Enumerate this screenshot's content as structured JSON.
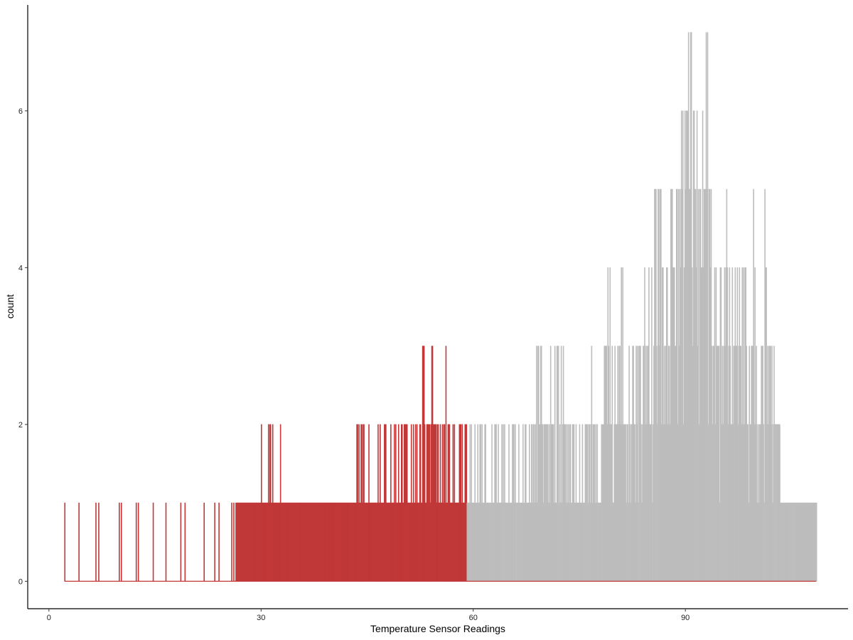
{
  "chart_data": {
    "type": "histogram",
    "title": "",
    "xlabel": "Temperature Sensor Readings",
    "ylabel": "count",
    "xlim": [
      -3,
      113
    ],
    "ylim": [
      -0.35,
      7.35
    ],
    "x_ticks": [
      0,
      30,
      60,
      90
    ],
    "y_ticks": [
      0,
      2,
      4,
      6
    ],
    "x_tick_labels": [
      "0",
      "30",
      "60",
      "90"
    ],
    "y_tick_labels": [
      "0",
      "2",
      "4",
      "6"
    ],
    "bin_width": 0.1,
    "data_range": [
      2.2,
      108.5
    ],
    "threshold": 59.1,
    "grid": false,
    "legend": "none",
    "series": [
      {
        "color": "#c13838",
        "x_range": [
          2.2,
          59.1
        ],
        "sampled_counts": [
          [
            2.2,
            1
          ],
          [
            4.2,
            1
          ],
          [
            6.6,
            1
          ],
          [
            7.0,
            1
          ],
          [
            9.9,
            1
          ],
          [
            10.2,
            1
          ],
          [
            12.3,
            1
          ],
          [
            12.6,
            1
          ],
          [
            14.7,
            1
          ],
          [
            16.5,
            1
          ],
          [
            18.6,
            1
          ],
          [
            19.2,
            1
          ],
          [
            21.9,
            1
          ],
          [
            23.4,
            1
          ],
          [
            24.0,
            1
          ],
          [
            25.8,
            1
          ],
          [
            26.1,
            1
          ],
          [
            26.4,
            1
          ],
          [
            26.6,
            1
          ],
          [
            27.0,
            1
          ],
          [
            28.0,
            1
          ],
          [
            29.0,
            1
          ],
          [
            30.0,
            2
          ],
          [
            30.5,
            1
          ],
          [
            31.0,
            2
          ],
          [
            31.3,
            2
          ],
          [
            31.6,
            2
          ],
          [
            32.0,
            1
          ],
          [
            32.7,
            2
          ],
          [
            33.5,
            1
          ],
          [
            35.0,
            1
          ],
          [
            36.5,
            1
          ],
          [
            38.0,
            1
          ],
          [
            40.0,
            1
          ],
          [
            42.0,
            1
          ],
          [
            43.6,
            2
          ],
          [
            44.5,
            2
          ],
          [
            46.5,
            2
          ],
          [
            47.5,
            2
          ],
          [
            48.3,
            2
          ],
          [
            49.4,
            2
          ],
          [
            49.9,
            2
          ],
          [
            50.5,
            2
          ],
          [
            51.2,
            2
          ],
          [
            52.0,
            2
          ],
          [
            52.9,
            3
          ],
          [
            53.5,
            2
          ],
          [
            54.2,
            3
          ],
          [
            55.0,
            2
          ],
          [
            56.1,
            3
          ],
          [
            56.5,
            2
          ],
          [
            57.3,
            2
          ],
          [
            58.0,
            2
          ],
          [
            58.8,
            2
          ]
        ]
      },
      {
        "color": "#bdbdbd",
        "x_range": [
          59.1,
          108.5
        ],
        "sampled_counts": [
          [
            59.5,
            2
          ],
          [
            61.0,
            2
          ],
          [
            63.0,
            2
          ],
          [
            65.0,
            2
          ],
          [
            67.0,
            2
          ],
          [
            69.2,
            3
          ],
          [
            71.5,
            3
          ],
          [
            72.4,
            3
          ],
          [
            74.0,
            2
          ],
          [
            75.0,
            2
          ],
          [
            76.7,
            3
          ],
          [
            77.5,
            2
          ],
          [
            78.5,
            3
          ],
          [
            79.3,
            4
          ],
          [
            80.0,
            3
          ],
          [
            81.1,
            4
          ],
          [
            82.0,
            3
          ],
          [
            83.0,
            3
          ],
          [
            84.2,
            4
          ],
          [
            85.2,
            4
          ],
          [
            85.8,
            5
          ],
          [
            86.5,
            5
          ],
          [
            87.4,
            4
          ],
          [
            88.1,
            5
          ],
          [
            88.7,
            5
          ],
          [
            89.4,
            6
          ],
          [
            89.9,
            6
          ],
          [
            90.4,
            7
          ],
          [
            90.8,
            7
          ],
          [
            91.2,
            6
          ],
          [
            91.6,
            6
          ],
          [
            92.0,
            5
          ],
          [
            92.4,
            6
          ],
          [
            93.1,
            7
          ],
          [
            93.6,
            5
          ],
          [
            94.3,
            4
          ],
          [
            95.0,
            4
          ],
          [
            95.8,
            5
          ],
          [
            96.6,
            4
          ],
          [
            97.3,
            4
          ],
          [
            98.4,
            4
          ],
          [
            99.0,
            3
          ],
          [
            99.6,
            5
          ],
          [
            100.0,
            3
          ],
          [
            100.7,
            3
          ],
          [
            101.2,
            5
          ],
          [
            101.8,
            3
          ],
          [
            102.5,
            3
          ],
          [
            103.3,
            2
          ],
          [
            104.0,
            1
          ],
          [
            104.6,
            1
          ],
          [
            105.2,
            1
          ],
          [
            105.8,
            1
          ],
          [
            106.4,
            1
          ],
          [
            107.0,
            1
          ],
          [
            107.6,
            1
          ],
          [
            108.1,
            1
          ],
          [
            108.5,
            1
          ]
        ]
      }
    ]
  }
}
